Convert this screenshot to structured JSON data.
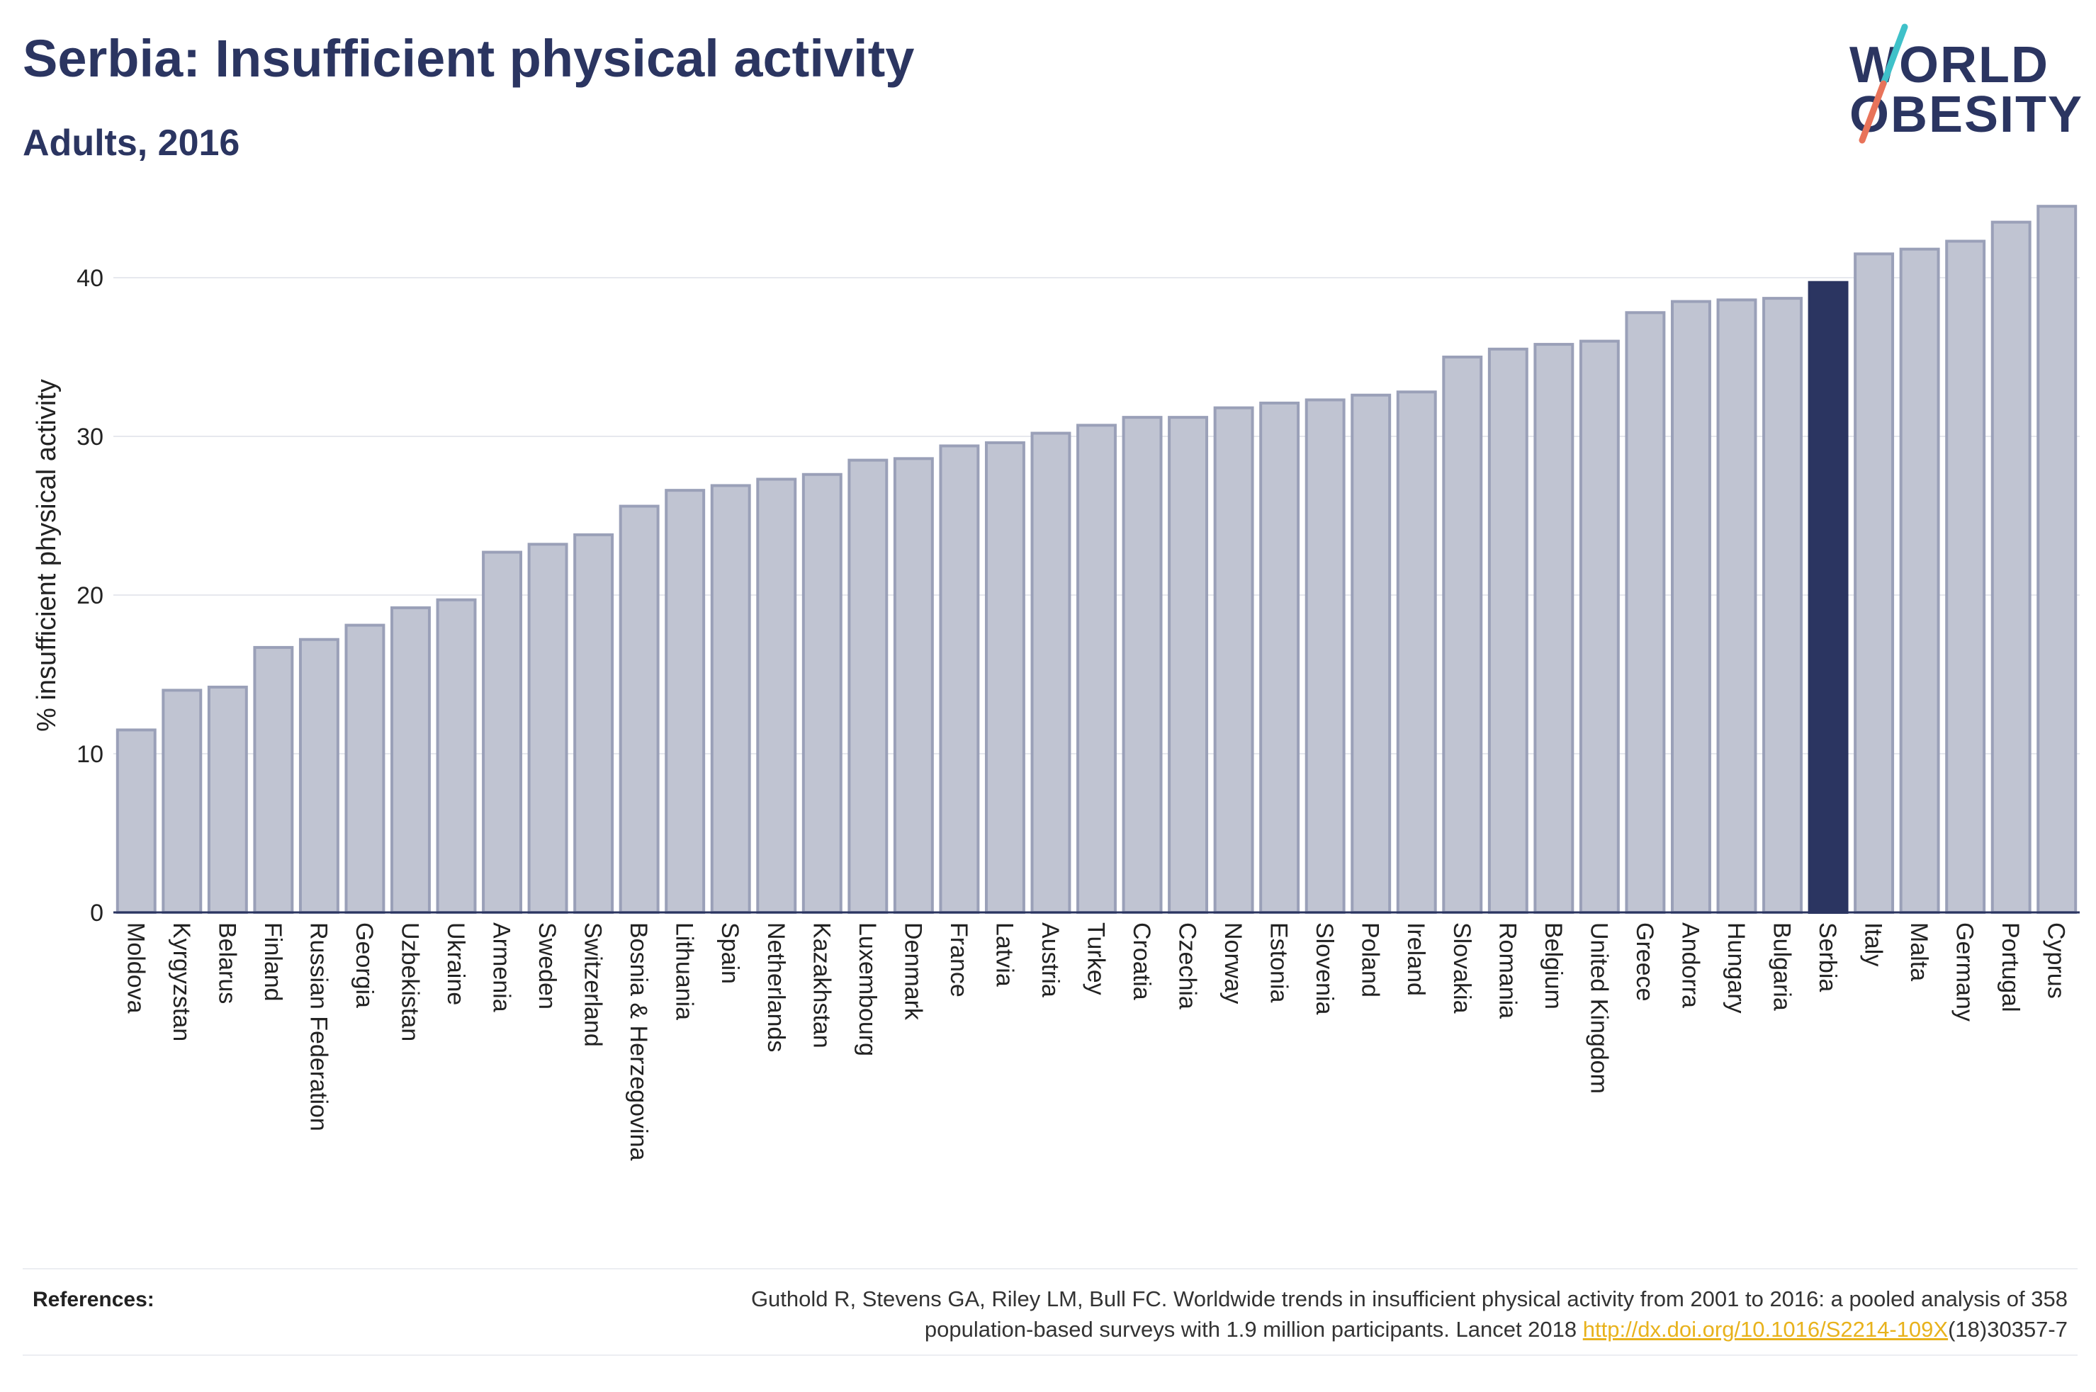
{
  "header": {
    "title": "Serbia: Insufficient physical activity",
    "subtitle": "Adults, 2016"
  },
  "logo": {
    "line1": "WORLD",
    "line2": "OBESITY",
    "slash_colors": [
      "#3fc1c9",
      "#e8735a"
    ]
  },
  "colors": {
    "bar": "#c0c4d2",
    "bar_border": "#9aa0b8",
    "highlight": "#2b3561",
    "axis_text": "#222222",
    "grid": "#e6e8ee"
  },
  "chart_data": {
    "type": "bar",
    "ylabel": "% insufficient physical activity",
    "xlabel": "",
    "ylim": [
      0,
      45
    ],
    "yticks": [
      0,
      10,
      20,
      30,
      40
    ],
    "grid": true,
    "highlight": "Serbia",
    "categories": [
      "Moldova",
      "Kyrgyzstan",
      "Belarus",
      "Finland",
      "Russian Federation",
      "Georgia",
      "Uzbekistan",
      "Ukraine",
      "Armenia",
      "Sweden",
      "Switzerland",
      "Bosnia & Herzegovina",
      "Lithuania",
      "Spain",
      "Netherlands",
      "Kazakhstan",
      "Luxembourg",
      "Denmark",
      "France",
      "Latvia",
      "Austria",
      "Turkey",
      "Croatia",
      "Czechia",
      "Norway",
      "Estonia",
      "Slovenia",
      "Poland",
      "Ireland",
      "Slovakia",
      "Romania",
      "Belgium",
      "United Kingdom",
      "Greece",
      "Andorra",
      "Hungary",
      "Bulgaria",
      "Serbia",
      "Italy",
      "Malta",
      "Germany",
      "Portugal",
      "Cyprus"
    ],
    "values": [
      11.5,
      14.0,
      14.2,
      16.7,
      17.2,
      18.1,
      19.2,
      19.7,
      22.7,
      23.2,
      23.8,
      25.6,
      26.6,
      26.9,
      27.3,
      27.6,
      28.5,
      28.6,
      29.4,
      29.6,
      30.2,
      30.7,
      31.2,
      31.2,
      31.8,
      32.1,
      32.3,
      32.6,
      32.8,
      35.0,
      35.5,
      35.8,
      36.0,
      37.8,
      38.5,
      38.6,
      38.7,
      39.7,
      41.5,
      41.8,
      42.3,
      43.5,
      44.5
    ]
  },
  "references": {
    "label": "References:",
    "line1": "Guthold R, Stevens GA, Riley LM, Bull FC. Worldwide trends in insufficient physical activity from 2001 to 2016: a pooled analysis of 358",
    "line2_prefix": "population-based surveys with 1.9 million participants. Lancet 2018 ",
    "link": "http://dx.doi.org/10.1016/S2214-109X",
    "line2_suffix": "(18)30357-7"
  }
}
